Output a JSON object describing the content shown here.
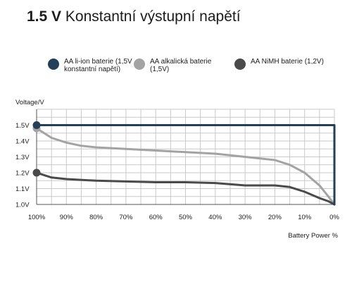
{
  "chart_data": {
    "type": "line",
    "title_bold": "1.5 V",
    "title_rest": "Konstantní výstupní napětí",
    "ylabel": "Voltage/V",
    "xlabel": "Battery Power %",
    "x_ticks": [
      "100%",
      "90%",
      "80%",
      "70%",
      "60%",
      "50%",
      "40%",
      "30%",
      "20%",
      "10%",
      "0%"
    ],
    "y_ticks": [
      "1.0V",
      "1.1V",
      "1.2V",
      "1.3V",
      "1.4V",
      "1.5V"
    ],
    "xlim": [
      100,
      0
    ],
    "ylim": [
      1.0,
      1.6
    ],
    "grid": true,
    "legend_position": "top",
    "series": [
      {
        "name": "AA li-ion baterie (1,5V konstantní napětí)",
        "color": "#22405a",
        "x": [
          100,
          90,
          80,
          70,
          60,
          50,
          40,
          30,
          20,
          10,
          0,
          0
        ],
        "y": [
          1.5,
          1.5,
          1.5,
          1.5,
          1.5,
          1.5,
          1.5,
          1.5,
          1.5,
          1.5,
          1.5,
          1.0
        ]
      },
      {
        "name": "AA alkalická baterie (1,5V)",
        "color": "#a3a3a3",
        "x": [
          100,
          95,
          90,
          85,
          80,
          70,
          60,
          50,
          40,
          30,
          20,
          15,
          10,
          5,
          2,
          0
        ],
        "y": [
          1.48,
          1.42,
          1.39,
          1.37,
          1.36,
          1.35,
          1.34,
          1.33,
          1.32,
          1.3,
          1.28,
          1.25,
          1.2,
          1.12,
          1.05,
          1.0
        ]
      },
      {
        "name": "AA NiMH baterie (1,2V)",
        "color": "#4a4a4a",
        "x": [
          100,
          95,
          90,
          80,
          70,
          60,
          50,
          40,
          30,
          20,
          15,
          10,
          5,
          2,
          0
        ],
        "y": [
          1.2,
          1.17,
          1.16,
          1.15,
          1.145,
          1.14,
          1.14,
          1.135,
          1.12,
          1.12,
          1.11,
          1.08,
          1.04,
          1.02,
          1.0
        ]
      }
    ]
  }
}
